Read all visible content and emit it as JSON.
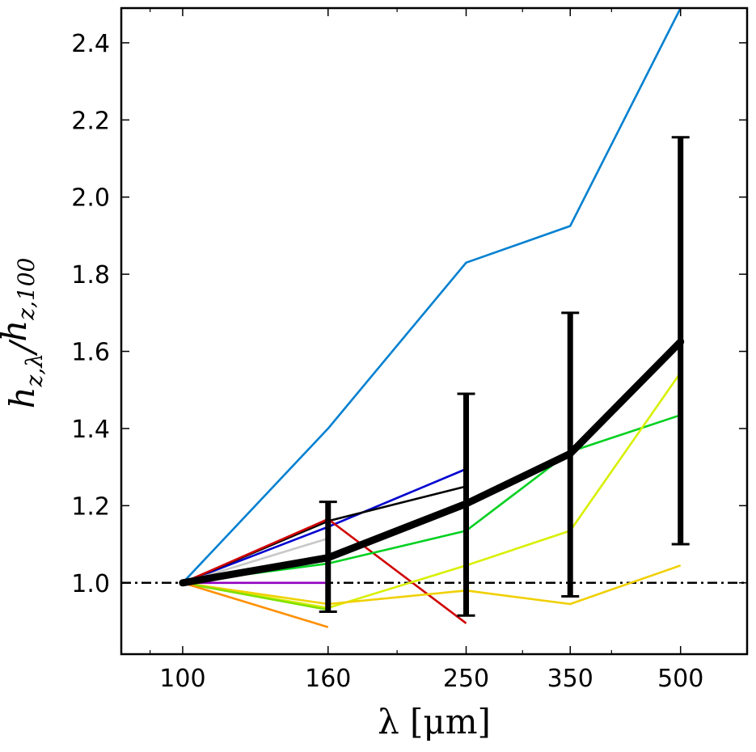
{
  "chart_data": {
    "type": "line",
    "xlabel": "λ [μm]",
    "ylabel": "h_{z,λ}/h_{z,100}",
    "x_scale": "log",
    "x_ticks": [
      100,
      160,
      250,
      350,
      500
    ],
    "x_tick_labels": [
      "100",
      "160",
      "250",
      "350",
      "500"
    ],
    "xlim": [
      82,
      620
    ],
    "y_ticks": [
      1.0,
      1.2,
      1.4,
      1.6,
      1.8,
      2.0,
      2.2,
      2.4
    ],
    "y_tick_labels": [
      "1.0",
      "1.2",
      "1.4",
      "1.6",
      "1.8",
      "2.0",
      "2.2",
      "2.4"
    ],
    "ylim": [
      0.815,
      2.49
    ],
    "reference_line": {
      "y": 1.0,
      "style": "dash-dot",
      "color": "#000000"
    },
    "series": [
      {
        "color": "#0080d0",
        "x": [
          100,
          160,
          250,
          350,
          500
        ],
        "y": [
          1.0,
          1.4,
          1.83,
          1.925,
          2.49
        ]
      },
      {
        "color": "#0000d0",
        "x": [
          100,
          160,
          250
        ],
        "y": [
          1.0,
          1.145,
          1.295
        ]
      },
      {
        "color": "#000000",
        "x": [
          100,
          160,
          250
        ],
        "y": [
          1.0,
          1.16,
          1.25
        ]
      },
      {
        "color": "#c8c8c8",
        "x": [
          100,
          160
        ],
        "y": [
          1.0,
          1.115
        ]
      },
      {
        "color": "#d00000",
        "x": [
          100,
          160,
          250
        ],
        "y": [
          1.0,
          1.165,
          0.895
        ]
      },
      {
        "color": "#00d020",
        "x": [
          100,
          160,
          250,
          350,
          500
        ],
        "y": [
          1.0,
          1.05,
          1.135,
          1.34,
          1.435
        ]
      },
      {
        "color": "#d8f000",
        "x": [
          100,
          160,
          250,
          350,
          500
        ],
        "y": [
          1.0,
          0.935,
          1.045,
          1.135,
          1.545
        ]
      },
      {
        "color": "#f0d000",
        "x": [
          100,
          160,
          250,
          350,
          500
        ],
        "y": [
          1.0,
          0.945,
          0.98,
          0.945,
          1.045
        ]
      },
      {
        "color": "#80e000",
        "x": [
          100,
          160
        ],
        "y": [
          1.0,
          0.93
        ]
      },
      {
        "color": "#ff9000",
        "x": [
          100,
          160
        ],
        "y": [
          1.0,
          0.885
        ]
      },
      {
        "color": "#9000c0",
        "x": [
          100,
          160
        ],
        "y": [
          1.0,
          1.0
        ]
      }
    ],
    "mean": {
      "color": "#000000",
      "x": [
        100,
        160,
        250,
        350,
        500
      ],
      "y": [
        1.0,
        1.065,
        1.205,
        1.335,
        1.625
      ],
      "err_low": [
        null,
        0.925,
        0.915,
        0.965,
        1.1
      ],
      "err_high": [
        null,
        1.21,
        1.49,
        1.7,
        2.155
      ]
    }
  }
}
